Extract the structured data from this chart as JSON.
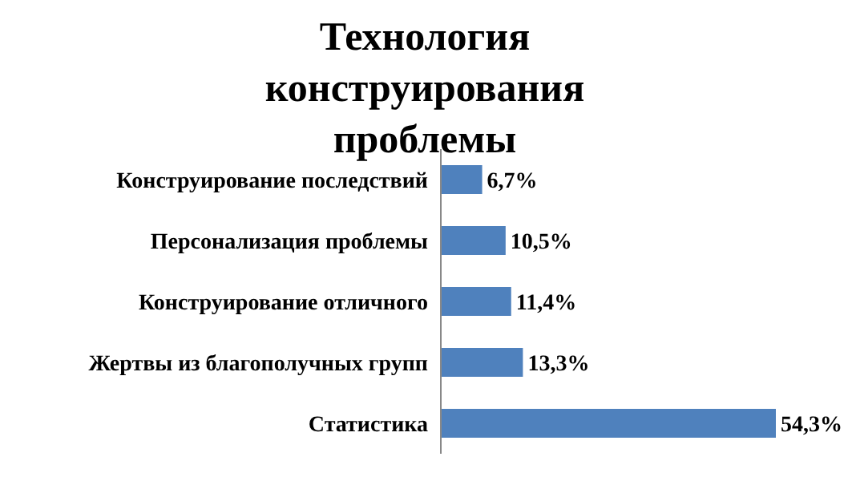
{
  "chart_data": {
    "type": "bar",
    "orientation": "horizontal",
    "title": "Технология конструирования проблемы",
    "categories": [
      "Конструирование последствий",
      "Персонализация проблемы",
      "Конструирование отличного",
      "Жертвы из благополучных групп",
      "Статистика"
    ],
    "values": [
      6.7,
      10.5,
      11.4,
      13.3,
      54.3
    ],
    "value_labels": [
      "6,7%",
      "10,5%",
      "11,4%",
      "13,3%",
      "54,3%"
    ],
    "color": "#4f81bd",
    "grid": false,
    "legend": false
  }
}
